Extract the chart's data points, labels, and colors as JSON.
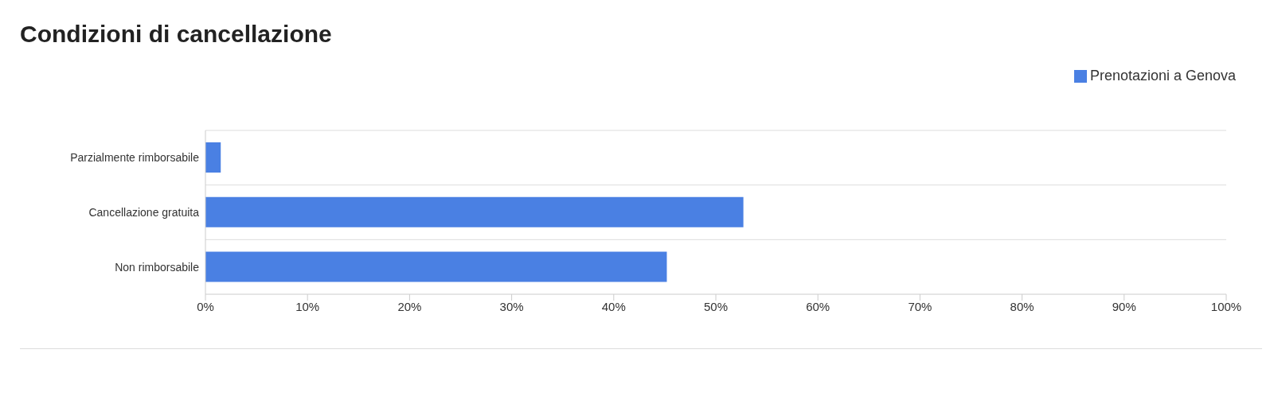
{
  "chart_data": {
    "type": "bar",
    "title": "Condizioni di cancellazione",
    "orientation": "horizontal",
    "categories": [
      "Parzialmente rimborsabile",
      "Cancellazione gratuita",
      "Non rimborsabile"
    ],
    "series": [
      {
        "name": "Prenotazioni a Genova",
        "color": "#4a80e3",
        "values": [
          1.5,
          52.7,
          45.2
        ]
      }
    ],
    "xlim": [
      0,
      100
    ],
    "xticks": [
      {
        "value": 0,
        "label": "0%"
      },
      {
        "value": 10,
        "label": "10%"
      },
      {
        "value": 20,
        "label": "20%"
      },
      {
        "value": 30,
        "label": "30%"
      },
      {
        "value": 40,
        "label": "40%"
      },
      {
        "value": 50,
        "label": "50%"
      },
      {
        "value": 60,
        "label": "60%"
      },
      {
        "value": 70,
        "label": "70%"
      },
      {
        "value": 80,
        "label": "80%"
      },
      {
        "value": 90,
        "label": "90%"
      },
      {
        "value": 100,
        "label": "100%"
      }
    ],
    "grid": "y",
    "legend": "top right"
  }
}
